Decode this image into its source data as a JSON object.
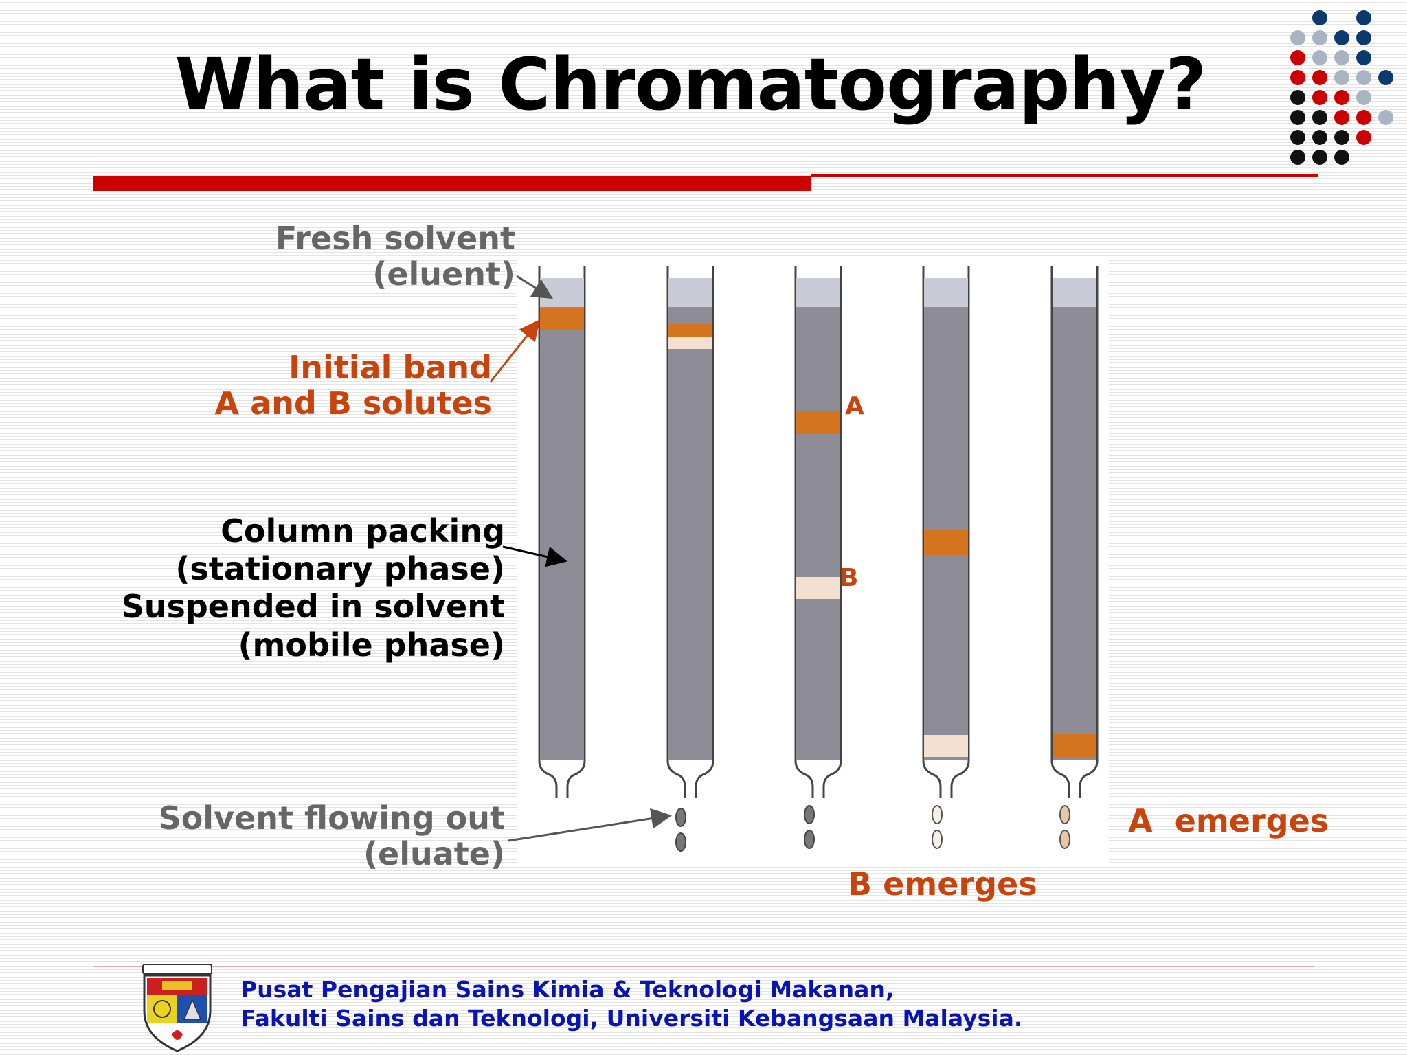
{
  "slide": {
    "title": "What is Chromatography?"
  },
  "labels": {
    "fresh_solvent": [
      "Fresh solvent",
      "(eluent)"
    ],
    "initial_band": [
      "Initial band",
      "A and B solutes"
    ],
    "column_packing": [
      "Column packing",
      "(stationary phase)",
      "Suspended in solvent",
      "(mobile phase)"
    ],
    "solvent_flowing": [
      "Solvent flowing out",
      "(eluate)"
    ],
    "band_a": "A",
    "band_b": "B",
    "a_emerges": "A  emerges",
    "b_emerges": "B emerges"
  },
  "footer": {
    "line1": "Pusat Pengajian Sains Kimia & Teknologi Makanan,",
    "line2": "Fakulti Sains dan Teknologi, Universiti Kebangsaan Malaysia."
  },
  "colors": {
    "accent_red": "#cc0000",
    "band_orange": "#d4741e",
    "label_orange": "#c8440c",
    "label_grey": "#666666",
    "column_grey": "#8e8c96",
    "footer_blue": "#0a14b4",
    "dot_navy": "#0b3a6e",
    "dot_silver": "#a9b4c2",
    "dot_red": "#cc0000",
    "dot_black": "#111111"
  },
  "icons": {
    "decoration": "dot-grid-decoration",
    "logo": "university-crest-logo"
  }
}
